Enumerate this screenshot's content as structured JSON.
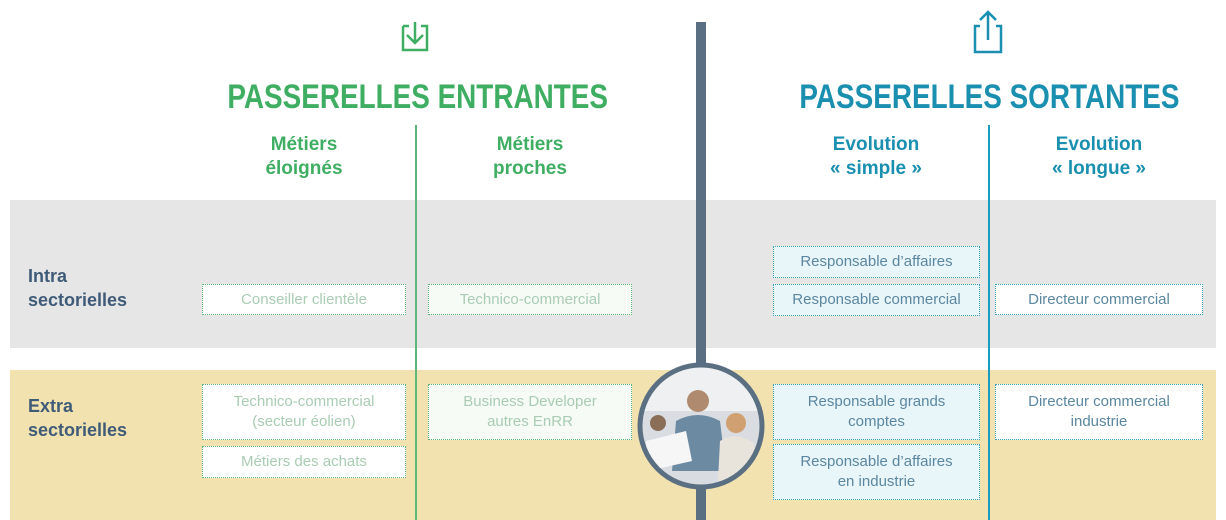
{
  "left": {
    "title": "PASSERELLES ENTRANTES",
    "columns": [
      "Métiers\néloignés",
      "Métiers\nproches"
    ]
  },
  "right": {
    "title": "PASSERELLES SORTANTES",
    "columns": [
      "Evolution\n« simple »",
      "Evolution\n« longue »"
    ]
  },
  "rows": [
    "Intra\nsectorielles",
    "Extra\nsectorielles"
  ],
  "cells": {
    "intra": [
      [
        "Conseiller clientèle"
      ],
      [
        "Technico-commercial"
      ],
      [
        "Responsable d’affaires",
        "Responsable commercial"
      ],
      [
        "Directeur commercial"
      ]
    ],
    "extra": [
      [
        "Technico-commercial\n(secteur éolien)",
        "Métiers des achats"
      ],
      [
        "Business Developer\nautres EnRR"
      ],
      [
        "Responsable grands\ncomptes",
        "Responsable d’affaires\nen industrie"
      ],
      [
        "Directeur commercial\nindustrie"
      ]
    ]
  }
}
